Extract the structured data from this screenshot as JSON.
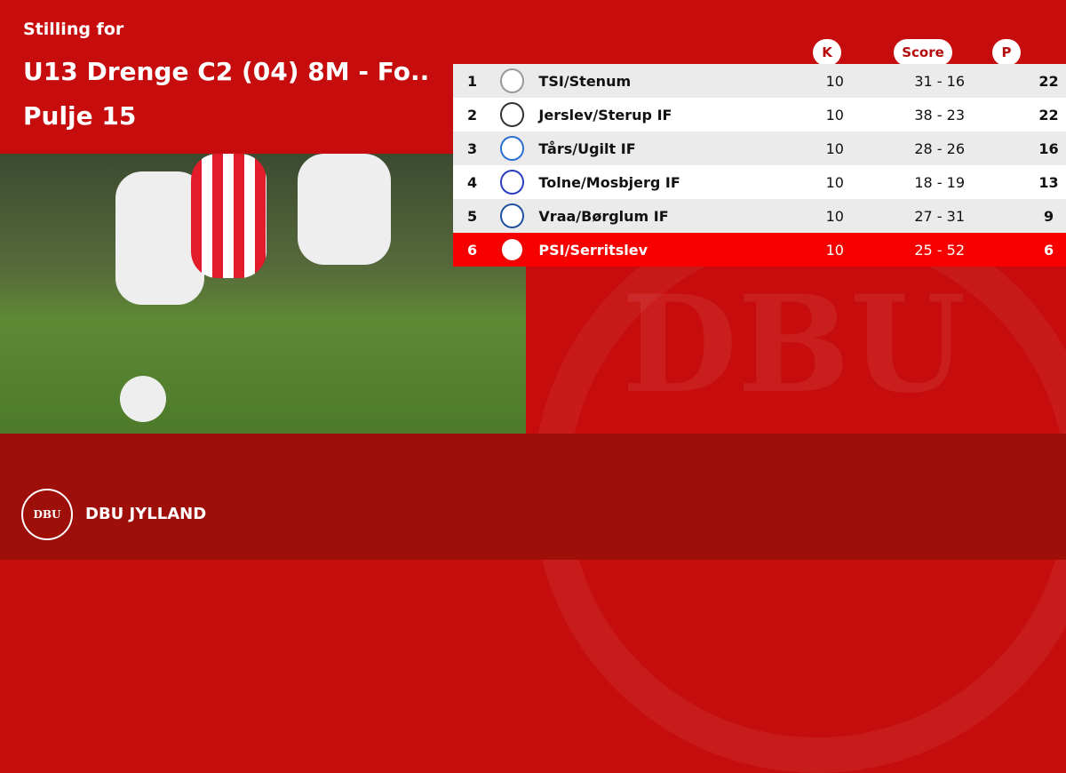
{
  "header": {
    "subtitle": "Stilling for",
    "title_line1": "U13 Drenge C2 (04) 8M - Fo..",
    "title_line2": "Pulje 15"
  },
  "table": {
    "columns": {
      "k": "K",
      "score": "Score",
      "p": "P"
    },
    "rows": [
      {
        "pos": "1",
        "team": "TSI/Stenum",
        "k": "10",
        "score": "31 - 16",
        "p": "22"
      },
      {
        "pos": "2",
        "team": "Jerslev/Sterup IF",
        "k": "10",
        "score": "38 - 23",
        "p": "22"
      },
      {
        "pos": "3",
        "team": "Tårs/Ugilt IF",
        "k": "10",
        "score": "28 - 26",
        "p": "16"
      },
      {
        "pos": "4",
        "team": "Tolne/Mosbjerg IF",
        "k": "10",
        "score": "18 - 19",
        "p": "13"
      },
      {
        "pos": "5",
        "team": "Vraa/Børglum IF",
        "k": "10",
        "score": "27 - 31",
        "p": "9"
      },
      {
        "pos": "6",
        "team": "PSI/Serritslev",
        "k": "10",
        "score": "25 - 52",
        "p": "6",
        "highlighted": true
      }
    ]
  },
  "footer": {
    "logo_text": "DBU",
    "org": "DBU JYLLAND"
  },
  "colors": {
    "brand_red": "#c60c0c",
    "highlight": "#f70000",
    "footer": "#9e0f0a"
  }
}
